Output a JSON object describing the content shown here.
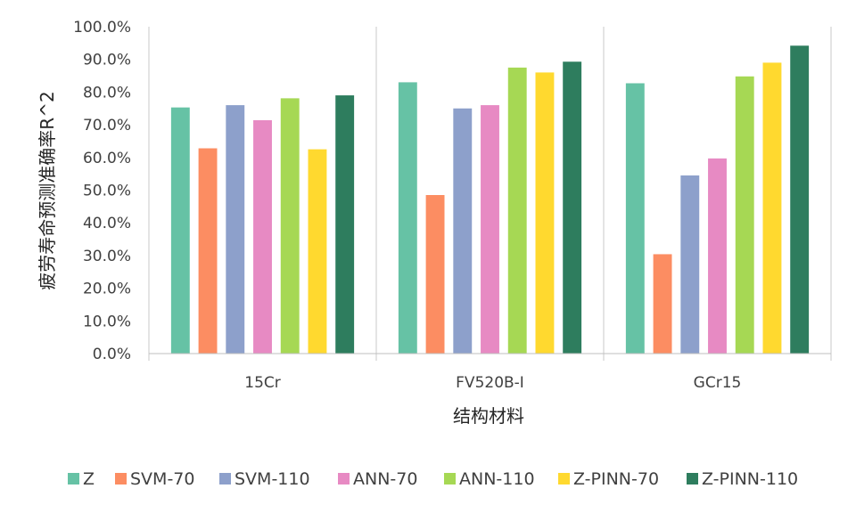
{
  "chart_data": {
    "type": "bar",
    "title": "",
    "xlabel": "结构材料",
    "ylabel": "疲劳寿命预测准确率R^2",
    "ylim": [
      0,
      100
    ],
    "y_step": 10,
    "tick_suffix": "%",
    "tick_decimals": 1,
    "categories": [
      "15Cr",
      "FV520B-I",
      "GCr15"
    ],
    "series": [
      {
        "name": "Z",
        "color": "#66c2a5",
        "values": [
          75.3,
          83.0,
          82.7
        ]
      },
      {
        "name": "SVM-70",
        "color": "#fc8d62",
        "values": [
          62.8,
          48.5,
          30.4
        ]
      },
      {
        "name": "SVM-110",
        "color": "#8da0cb",
        "values": [
          76.0,
          75.0,
          54.5
        ]
      },
      {
        "name": "ANN-70",
        "color": "#e78ac3",
        "values": [
          71.4,
          76.0,
          59.7
        ]
      },
      {
        "name": "ANN-110",
        "color": "#a6d854",
        "values": [
          78.1,
          87.5,
          84.8
        ]
      },
      {
        "name": "Z-PINN-70",
        "color": "#ffd92f",
        "values": [
          62.5,
          86.0,
          89.0
        ]
      },
      {
        "name": "Z-PINN-110",
        "color": "#2e7d5e",
        "values": [
          79.0,
          89.3,
          94.2
        ]
      }
    ],
    "legend_position": "bottom",
    "grid": "category-separators"
  }
}
